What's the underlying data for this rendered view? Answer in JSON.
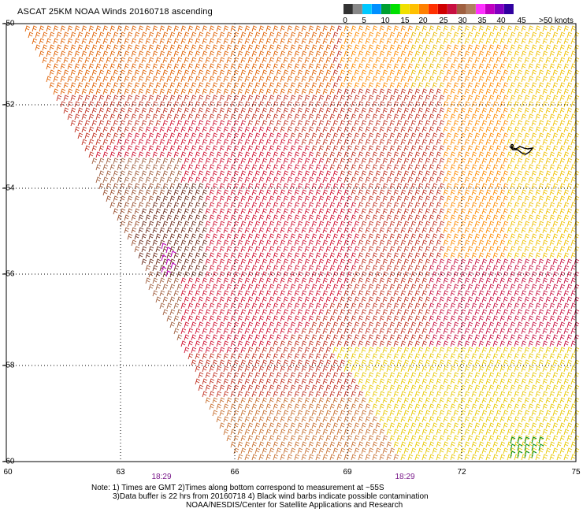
{
  "title": "ASCAT 25KM NOAA Winds 20160718 ascending",
  "legend": {
    "colors": [
      "#333333",
      "#888888",
      "#00c8ff",
      "#0090ff",
      "#00a030",
      "#00e000",
      "#f0e000",
      "#ffc000",
      "#ff8000",
      "#ff3000",
      "#d00000",
      "#c81040",
      "#a06040",
      "#b08060",
      "#ff30ff",
      "#c000c0",
      "#8000c0",
      "#3000a0"
    ],
    "labels": [
      "0",
      "5",
      "10",
      "15",
      "20",
      "25",
      "30",
      "35",
      "40",
      "45",
      ">50 knots"
    ]
  },
  "latitudes": [
    "-50",
    "-52",
    "-54",
    "-56",
    "-58",
    "-60"
  ],
  "longitudes": [
    "60",
    "63",
    "66",
    "69",
    "72",
    "75"
  ],
  "times": [
    "18:29",
    "18:29"
  ],
  "notes": [
    "Note: 1) Times are GMT 2)Times along bottom correspond to measurement at ~55S",
    "3)Data buffer is 22 hrs from 20160718 4) Black wind barbs indicate possible contamination",
    "NOAA/NESDIS/Center for Satellite Applications and Research"
  ]
}
